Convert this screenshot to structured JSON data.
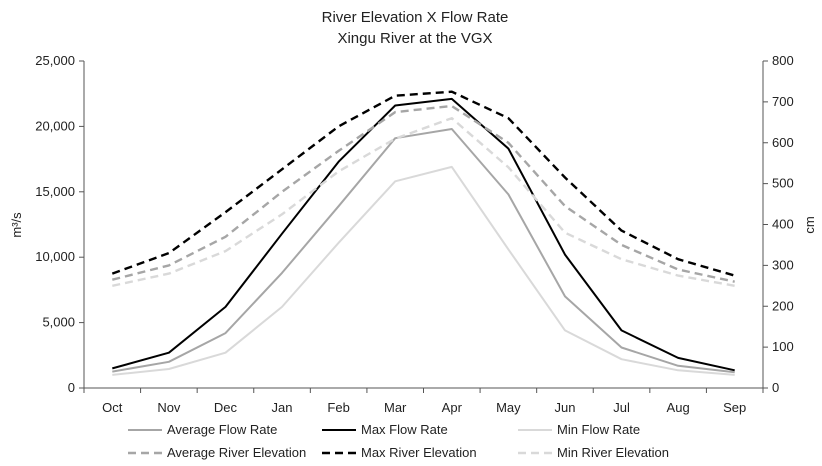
{
  "chart_data": {
    "type": "line",
    "title": "River Elevation X Flow Rate",
    "subtitle": "Xingu River at the VGX",
    "categories": [
      "Oct",
      "Nov",
      "Dec",
      "Jan",
      "Feb",
      "Mar",
      "Apr",
      "May",
      "Jun",
      "Jul",
      "Aug",
      "Sep"
    ],
    "ylabel": "m³/s",
    "y2label": "cm",
    "ylim": [
      0,
      25000
    ],
    "y2lim": [
      0,
      800
    ],
    "yticks": [
      "0",
      "5,000",
      "10,000",
      "15,000",
      "20,000",
      "25,000"
    ],
    "y2ticks": [
      "0",
      "100",
      "200",
      "300",
      "400",
      "500",
      "600",
      "700",
      "800"
    ],
    "grid": false,
    "legend_position": "bottom",
    "series": [
      {
        "name": "Average Flow Rate",
        "axis": "left",
        "color": "#a6a6a6",
        "dash": "solid",
        "values": [
          1250,
          2000,
          4200,
          8800,
          13900,
          19100,
          19800,
          14800,
          7000,
          3100,
          1700,
          1200
        ]
      },
      {
        "name": "Max Flow Rate",
        "axis": "left",
        "color": "#000000",
        "dash": "solid",
        "values": [
          1500,
          2700,
          6200,
          11800,
          17300,
          21600,
          22100,
          18300,
          10200,
          4400,
          2300,
          1350
        ]
      },
      {
        "name": "Min Flow Rate",
        "axis": "left",
        "color": "#d9d9d9",
        "dash": "solid",
        "values": [
          1000,
          1450,
          2700,
          6200,
          11100,
          15800,
          16900,
          10600,
          4400,
          2200,
          1350,
          1000
        ]
      },
      {
        "name": "Average River Elevation",
        "axis": "right",
        "color": "#a6a6a6",
        "dash": "dashed",
        "values": [
          265,
          300,
          370,
          480,
          580,
          675,
          690,
          600,
          445,
          350,
          290,
          260
        ]
      },
      {
        "name": "Max River Elevation",
        "axis": "right",
        "color": "#000000",
        "dash": "dashed",
        "values": [
          280,
          330,
          430,
          535,
          640,
          715,
          725,
          660,
          515,
          385,
          315,
          275
        ]
      },
      {
        "name": "Min River Elevation",
        "axis": "right",
        "color": "#d9d9d9",
        "dash": "dashed",
        "values": [
          250,
          280,
          335,
          425,
          530,
          610,
          660,
          540,
          380,
          315,
          275,
          250
        ]
      }
    ]
  }
}
